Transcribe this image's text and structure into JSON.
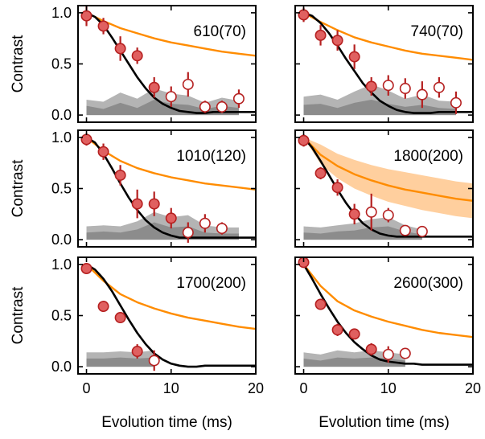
{
  "colors": {
    "theory_line": "#ff8c00",
    "theory_band": "#ffcf9e",
    "model_line": "#000000",
    "band_outer": "#b4b4b4",
    "band_inner": "#8c8c8c",
    "marker_fill": "#e06060",
    "marker_edge": "#b52020",
    "open_marker_fill": "#ffffff",
    "errorbar": "#b52020"
  },
  "axes": {
    "xlabel": "Evolution time (ms)",
    "ylabel": "Contrast",
    "xlim": [
      -1,
      20
    ],
    "ylim": [
      -0.07,
      1.07
    ],
    "xticks": [
      "0",
      "10",
      "20"
    ],
    "yticks": [
      "0.0",
      "0.5",
      "1.0"
    ]
  },
  "chart_data": [
    {
      "type": "scatter",
      "label": "610(70)",
      "filled_points": {
        "x": [
          0,
          2,
          4,
          6,
          8
        ],
        "y": [
          0.97,
          0.87,
          0.65,
          0.58,
          0.27
        ],
        "err": [
          0.1,
          0.08,
          0.12,
          0.08,
          0.1
        ]
      },
      "open_points": {
        "x": [
          10,
          12,
          14,
          16,
          18
        ],
        "y": [
          0.18,
          0.3,
          0.08,
          0.08,
          0.16
        ],
        "err": [
          0.1,
          0.12,
          0.06,
          0.06,
          0.09
        ]
      },
      "model_curve": {
        "x": [
          0,
          1,
          2,
          3,
          4,
          5,
          6,
          7,
          8,
          9,
          10,
          11,
          12,
          13,
          14,
          15,
          16,
          17,
          18,
          19,
          20
        ],
        "y": [
          1.0,
          0.96,
          0.88,
          0.76,
          0.63,
          0.5,
          0.37,
          0.26,
          0.17,
          0.11,
          0.07,
          0.04,
          0.03,
          0.02,
          0.02,
          0.03,
          0.03,
          0.03,
          0.03,
          0.03,
          0.03
        ]
      },
      "theory_curve": {
        "x": [
          0,
          2,
          4,
          6,
          8,
          10,
          12,
          14,
          16,
          18,
          20
        ],
        "y": [
          1.0,
          0.92,
          0.85,
          0.8,
          0.75,
          0.71,
          0.68,
          0.65,
          0.62,
          0.6,
          0.58
        ]
      },
      "band_outer": {
        "x": [
          0,
          2,
          4,
          6,
          8,
          10,
          12,
          14,
          16,
          18
        ],
        "y": [
          0.15,
          0.13,
          0.22,
          0.16,
          0.26,
          0.21,
          0.19,
          0.12,
          0.17,
          0.14
        ]
      },
      "band_inner": {
        "x": [
          0,
          2,
          4,
          6,
          8,
          10,
          12,
          14,
          16,
          18
        ],
        "y": [
          0.09,
          0.06,
          0.12,
          0.07,
          0.15,
          0.11,
          0.1,
          0.06,
          0.09,
          0.07
        ]
      }
    },
    {
      "type": "scatter",
      "label": "740(70)",
      "filled_points": {
        "x": [
          0,
          2,
          4,
          6,
          8
        ],
        "y": [
          0.98,
          0.78,
          0.73,
          0.57,
          0.28
        ],
        "err": [
          0.07,
          0.1,
          0.1,
          0.12,
          0.09
        ]
      },
      "open_points": {
        "x": [
          10,
          12,
          14,
          16,
          18
        ],
        "y": [
          0.29,
          0.26,
          0.2,
          0.27,
          0.12
        ],
        "err": [
          0.1,
          0.1,
          0.13,
          0.1,
          0.11
        ]
      },
      "model_curve": {
        "x": [
          0,
          1,
          2,
          3,
          4,
          5,
          6,
          7,
          8,
          9,
          10,
          11,
          12,
          13,
          14,
          15,
          16,
          17,
          18,
          19,
          20
        ],
        "y": [
          1.0,
          0.97,
          0.9,
          0.8,
          0.68,
          0.55,
          0.43,
          0.31,
          0.22,
          0.14,
          0.09,
          0.05,
          0.03,
          0.02,
          0.02,
          0.02,
          0.03,
          0.03,
          0.03,
          0.03,
          0.03
        ]
      },
      "theory_curve": {
        "x": [
          0,
          2,
          4,
          6,
          8,
          10,
          12,
          14,
          16,
          18,
          20
        ],
        "y": [
          1.0,
          0.91,
          0.83,
          0.76,
          0.71,
          0.67,
          0.63,
          0.6,
          0.58,
          0.56,
          0.54
        ]
      },
      "band_outer": {
        "x": [
          0,
          2,
          4,
          6,
          8,
          10,
          12,
          14,
          16,
          18
        ],
        "y": [
          0.18,
          0.2,
          0.15,
          0.23,
          0.3,
          0.24,
          0.16,
          0.2,
          0.14,
          0.13
        ]
      },
      "band_inner": {
        "x": [
          0,
          2,
          4,
          6,
          8,
          10,
          12,
          14,
          16,
          18
        ],
        "y": [
          0.1,
          0.11,
          0.07,
          0.12,
          0.15,
          0.11,
          0.08,
          0.1,
          0.07,
          0.06
        ]
      }
    },
    {
      "type": "scatter",
      "label": "1010(120)",
      "filled_points": {
        "x": [
          0,
          2,
          4,
          6,
          8,
          10
        ],
        "y": [
          0.98,
          0.86,
          0.63,
          0.35,
          0.35,
          0.21
        ],
        "err": [
          0.06,
          0.08,
          0.1,
          0.14,
          0.12,
          0.1
        ]
      },
      "open_points": {
        "x": [
          12,
          14,
          16
        ],
        "y": [
          0.07,
          0.16,
          0.11
        ],
        "err": [
          0.1,
          0.09,
          0.06
        ]
      },
      "model_curve": {
        "x": [
          0,
          1,
          2,
          3,
          4,
          5,
          6,
          7,
          8,
          9,
          10,
          11,
          12,
          13,
          14,
          15,
          16,
          17,
          18,
          19,
          20
        ],
        "y": [
          1.0,
          0.95,
          0.84,
          0.7,
          0.55,
          0.41,
          0.29,
          0.19,
          0.12,
          0.07,
          0.04,
          0.02,
          0.02,
          0.02,
          0.02,
          0.02,
          0.02,
          0.02,
          0.02,
          0.02,
          0.02
        ]
      },
      "theory_curve": {
        "x": [
          0,
          2,
          4,
          6,
          8,
          10,
          12,
          14,
          16,
          18,
          20
        ],
        "y": [
          1.0,
          0.87,
          0.77,
          0.7,
          0.65,
          0.61,
          0.58,
          0.55,
          0.53,
          0.51,
          0.49
        ]
      },
      "band_outer": {
        "x": [
          0,
          2,
          4,
          6,
          8,
          10,
          12,
          14,
          16,
          18
        ],
        "y": [
          0.13,
          0.14,
          0.13,
          0.18,
          0.27,
          0.22,
          0.24,
          0.14,
          0.12,
          0.12
        ]
      },
      "band_inner": {
        "x": [
          0,
          2,
          4,
          6,
          8,
          10,
          12,
          14,
          16,
          18
        ],
        "y": [
          0.07,
          0.08,
          0.07,
          0.1,
          0.17,
          0.12,
          0.13,
          0.07,
          0.06,
          0.06
        ]
      }
    },
    {
      "type": "scatter",
      "label": "1800(200)",
      "filled_points": {
        "x": [
          0,
          2,
          4,
          6
        ],
        "y": [
          0.97,
          0.65,
          0.51,
          0.25
        ],
        "err": [
          0.06,
          0.06,
          0.08,
          0.1
        ]
      },
      "open_points": {
        "x": [
          8,
          10,
          12,
          14
        ],
        "y": [
          0.27,
          0.24,
          0.09,
          0.08
        ],
        "err": [
          0.18,
          0.07,
          0.05,
          0.05
        ]
      },
      "model_curve": {
        "x": [
          0,
          1,
          2,
          3,
          4,
          5,
          6,
          7,
          8,
          9,
          10,
          11,
          12,
          13,
          14,
          15,
          16,
          17,
          18,
          19,
          20
        ],
        "y": [
          1.0,
          0.9,
          0.77,
          0.63,
          0.49,
          0.36,
          0.25,
          0.16,
          0.1,
          0.06,
          0.04,
          0.03,
          0.03,
          0.03,
          0.03,
          0.03,
          0.03,
          0.03,
          0.03,
          0.03,
          0.03
        ]
      },
      "theory_curve": {
        "x": [
          0,
          2,
          4,
          6,
          8,
          10,
          12,
          14,
          16,
          18,
          20
        ],
        "y": [
          1.0,
          0.83,
          0.72,
          0.64,
          0.58,
          0.53,
          0.49,
          0.46,
          0.43,
          0.4,
          0.38
        ]
      },
      "theory_band_upper": [
        1.0,
        0.93,
        0.84,
        0.78,
        0.73,
        0.69,
        0.66,
        0.63,
        0.6,
        0.57,
        0.55
      ],
      "theory_band_lower": [
        1.0,
        0.74,
        0.6,
        0.5,
        0.43,
        0.37,
        0.33,
        0.29,
        0.26,
        0.23,
        0.21
      ],
      "band_outer": {
        "x": [
          0,
          2,
          4,
          6,
          8,
          10,
          12,
          14
        ],
        "y": [
          0.13,
          0.12,
          0.14,
          0.16,
          0.2,
          0.22,
          0.14,
          0.1
        ]
      },
      "band_inner": {
        "x": [
          0,
          2,
          4,
          6,
          8,
          10,
          12,
          14
        ],
        "y": [
          0.07,
          0.06,
          0.08,
          0.09,
          0.12,
          0.13,
          0.08,
          0.05
        ]
      }
    },
    {
      "type": "scatter",
      "label": "1700(200)",
      "filled_points": {
        "x": [
          0,
          2,
          4,
          6
        ],
        "y": [
          0.96,
          0.59,
          0.48,
          0.15
        ],
        "err": [
          0.04,
          0.04,
          0.05,
          0.07
        ]
      },
      "open_points": {
        "x": [
          8
        ],
        "y": [
          0.06
        ],
        "err": [
          0.1
        ]
      },
      "model_curve": {
        "x": [
          0,
          1,
          2,
          3,
          4,
          5,
          6,
          7,
          8,
          9,
          10,
          11,
          12,
          13,
          14,
          15,
          16,
          17,
          18,
          19,
          20
        ],
        "y": [
          1.0,
          0.95,
          0.86,
          0.74,
          0.6,
          0.46,
          0.33,
          0.22,
          0.13,
          0.07,
          0.03,
          0.01,
          0.0,
          0.0,
          0.01,
          0.01,
          0.01,
          0.01,
          0.01,
          0.01,
          0.01
        ]
      },
      "theory_curve": {
        "x": [
          0,
          2,
          4,
          6,
          8,
          10,
          12,
          14,
          16,
          18,
          20
        ],
        "y": [
          1.0,
          0.84,
          0.71,
          0.63,
          0.57,
          0.52,
          0.48,
          0.45,
          0.42,
          0.39,
          0.37
        ]
      },
      "band_outer": {
        "x": [
          0,
          2,
          4,
          6,
          8
        ],
        "y": [
          0.14,
          0.14,
          0.15,
          0.14,
          0.16
        ]
      },
      "band_inner": {
        "x": [
          0,
          2,
          4,
          6,
          8
        ],
        "y": [
          0.08,
          0.08,
          0.09,
          0.08,
          0.09
        ]
      }
    },
    {
      "type": "scatter",
      "label": "2600(300)",
      "filled_points": {
        "x": [
          0,
          2,
          4,
          6,
          8
        ],
        "y": [
          1.02,
          0.61,
          0.36,
          0.32,
          0.17
        ],
        "err": [
          0.04,
          0.04,
          0.06,
          0.05,
          0.06
        ]
      },
      "open_points": {
        "x": [
          10,
          12
        ],
        "y": [
          0.12,
          0.13
        ],
        "err": [
          0.08,
          0.05
        ]
      },
      "model_curve": {
        "x": [
          0,
          1,
          2,
          3,
          4,
          5,
          6,
          7,
          8,
          9,
          10,
          11,
          12,
          13,
          14,
          15,
          16,
          17,
          18,
          19,
          20
        ],
        "y": [
          1.0,
          0.86,
          0.71,
          0.57,
          0.44,
          0.33,
          0.24,
          0.17,
          0.11,
          0.07,
          0.05,
          0.04,
          0.03,
          0.03,
          0.02,
          0.02,
          0.02,
          0.02,
          0.02,
          0.02,
          0.02
        ]
      },
      "theory_curve": {
        "x": [
          0,
          2,
          4,
          6,
          8,
          10,
          12,
          14,
          16,
          18,
          20
        ],
        "y": [
          1.0,
          0.79,
          0.64,
          0.55,
          0.49,
          0.44,
          0.4,
          0.36,
          0.33,
          0.31,
          0.29
        ]
      },
      "band_outer": {
        "x": [
          0,
          2,
          4,
          6,
          8,
          10,
          12
        ],
        "y": [
          0.14,
          0.12,
          0.16,
          0.14,
          0.16,
          0.14,
          0.12
        ]
      },
      "band_inner": {
        "x": [
          0,
          2,
          4,
          6,
          8,
          10,
          12
        ],
        "y": [
          0.08,
          0.06,
          0.09,
          0.08,
          0.09,
          0.08,
          0.06
        ]
      }
    }
  ]
}
